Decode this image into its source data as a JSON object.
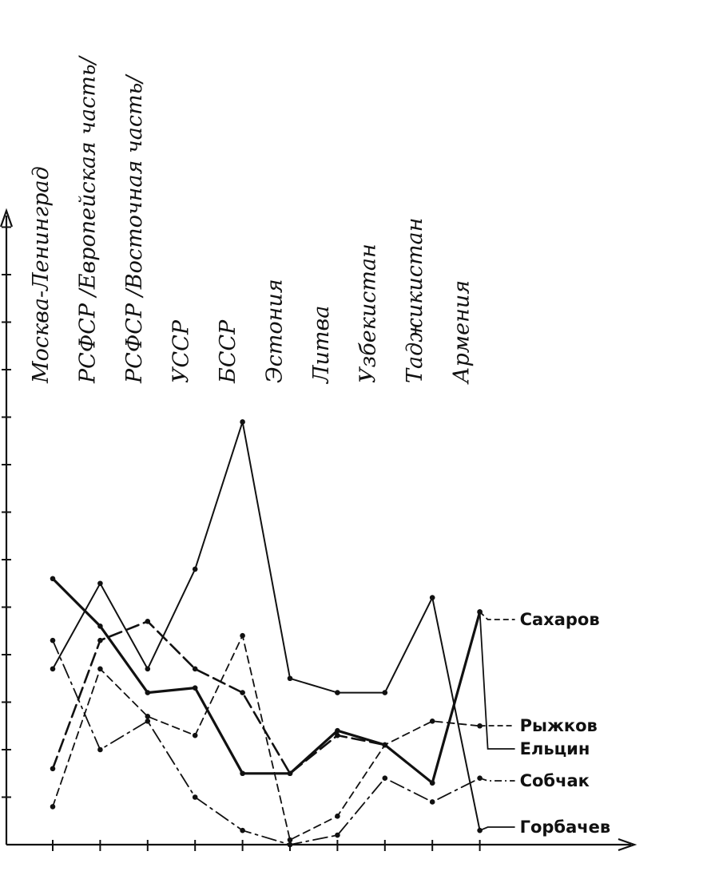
{
  "chart_data": {
    "type": "line",
    "title": "",
    "xlabel": "",
    "ylabel": "",
    "categories": [
      "Москва-Ленинград",
      "РСФСР /Европейская часть/",
      "РСФСР /Восточная часть/",
      "УССР",
      "БССР",
      "Эстония",
      "Литва",
      "Узбекистан",
      "Таджикистан",
      "Армения"
    ],
    "ylim": [
      0,
      17
    ],
    "grid": false,
    "legend": "right, labels at line ends",
    "series": [
      {
        "name": "Сахаров",
        "style": "dashed-bold",
        "values": [
          1.6,
          4.3,
          4.7,
          3.7,
          3.2,
          1.5,
          2.3,
          2.1,
          1.3,
          4.9
        ]
      },
      {
        "name": "Рыжков",
        "style": "dashed",
        "values": [
          0.8,
          3.7,
          2.7,
          2.3,
          4.4,
          0.1,
          0.6,
          2.1,
          2.6,
          2.5
        ]
      },
      {
        "name": "Ельцин",
        "style": "solid-bold",
        "values": [
          5.6,
          4.6,
          3.2,
          3.3,
          1.5,
          1.5,
          2.4,
          2.1,
          1.3,
          4.9
        ]
      },
      {
        "name": "Собчак",
        "style": "dash-dot",
        "values": [
          4.3,
          2.0,
          2.6,
          1.0,
          0.3,
          0.0,
          0.2,
          1.4,
          0.9,
          1.4
        ]
      },
      {
        "name": "Горбачев",
        "style": "solid",
        "values": [
          3.7,
          5.5,
          3.7,
          5.8,
          8.9,
          3.5,
          3.2,
          3.2,
          5.2,
          0.3
        ]
      }
    ]
  }
}
